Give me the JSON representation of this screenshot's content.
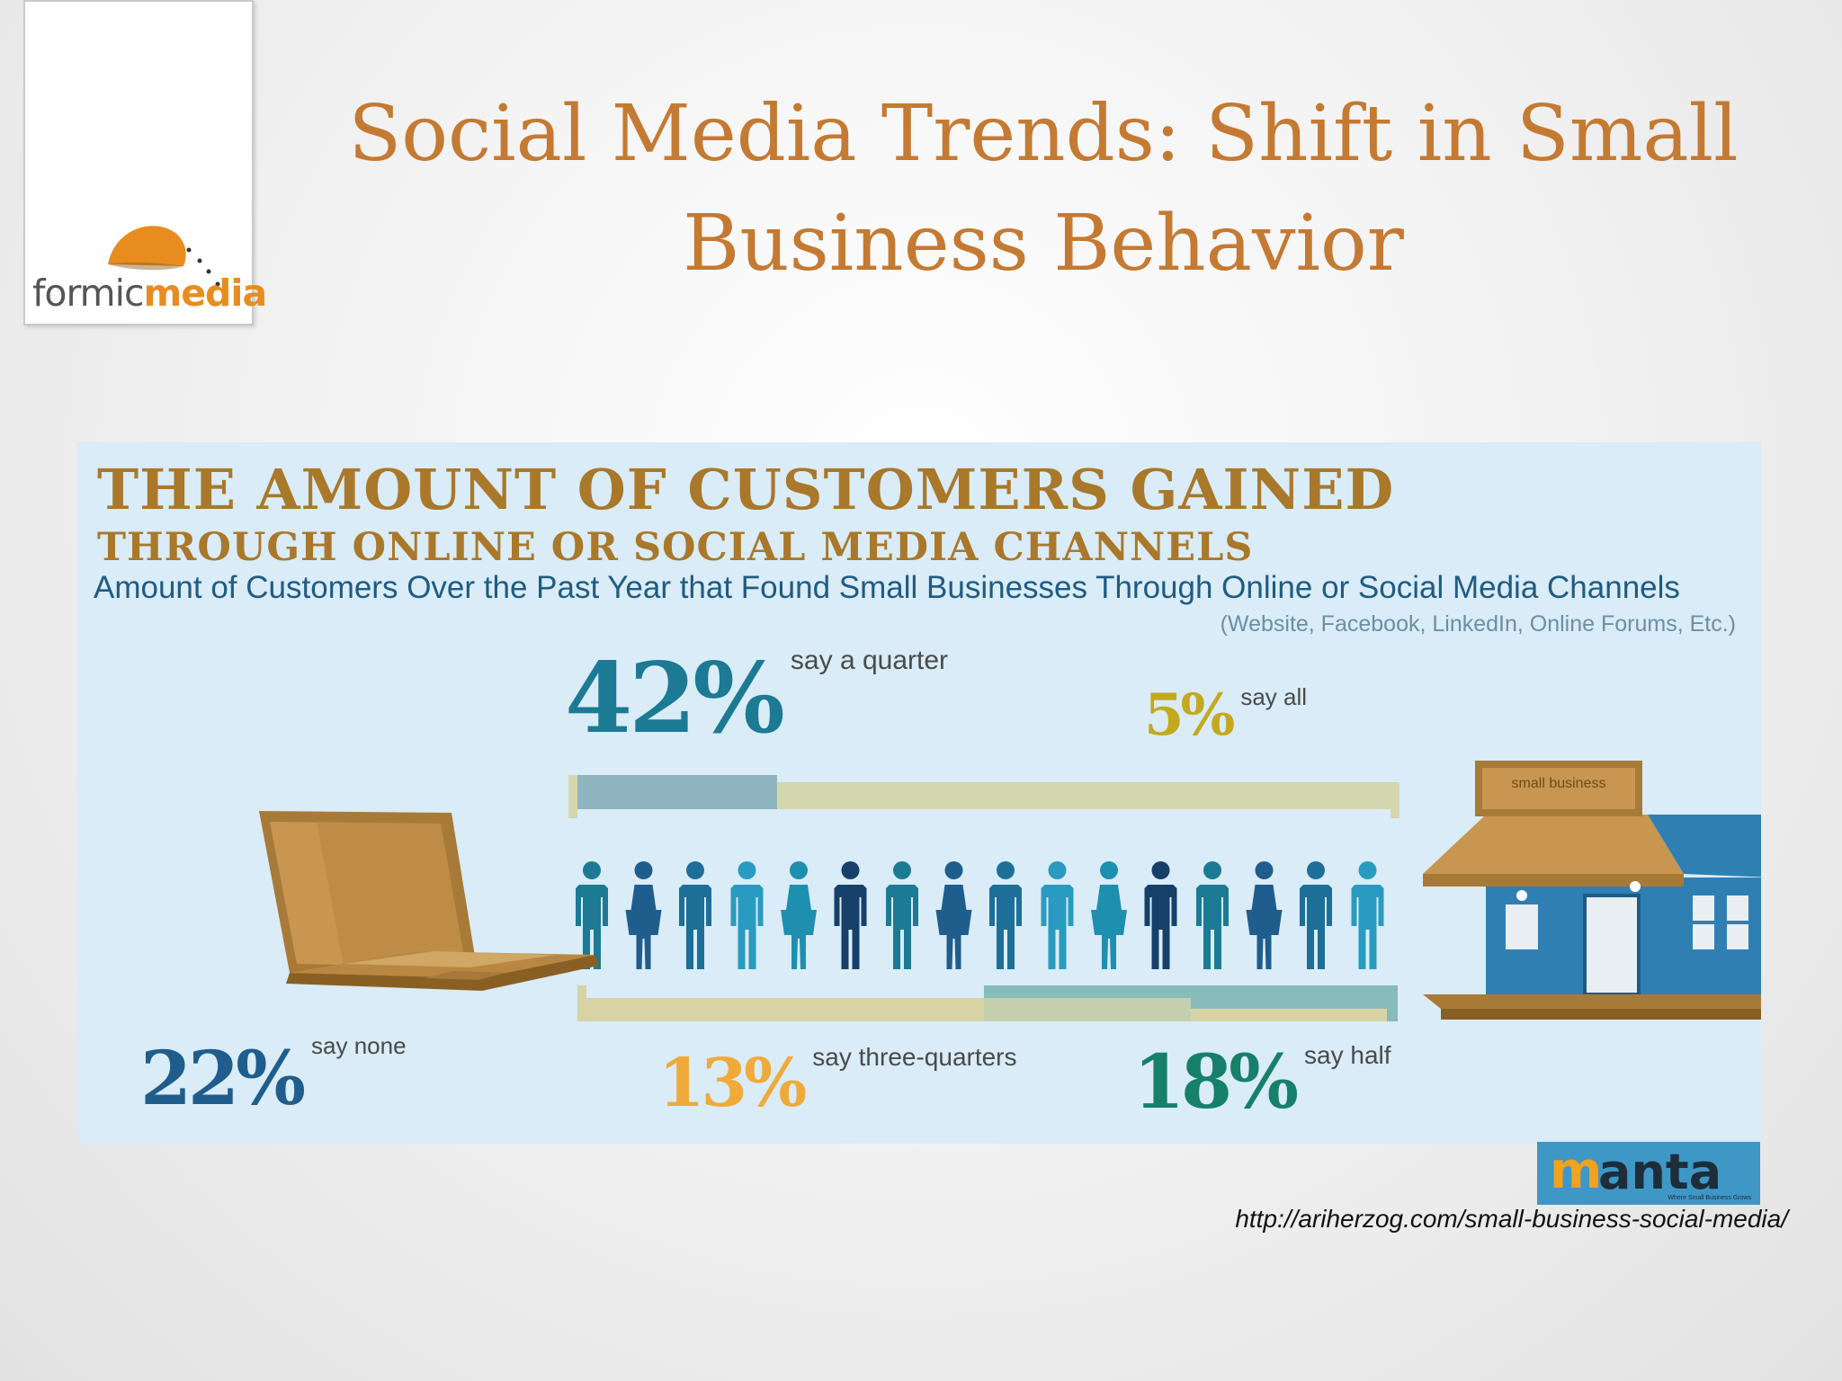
{
  "logo": {
    "text_a": "formic",
    "text_b": "media",
    "brand_color": "#e88c20"
  },
  "slide": {
    "title_line1": "Social Media Trends: Shift in Small",
    "title_line2": "Business Behavior",
    "title_color": "#c47a32"
  },
  "infographic": {
    "heading1": "THE AMOUNT OF CUSTOMERS GAINED",
    "heading2": "THROUGH ONLINE OR SOCIAL MEDIA CHANNELS",
    "subtitle": "Amount of Customers Over the Past Year that Found Small Businesses Through Online or Social Media Channels",
    "note": "(Website, Facebook, LinkedIn, Online Forums, Etc.)",
    "stats": [
      {
        "value": "42%",
        "label": "say a quarter",
        "color": "#1c7a94",
        "share": 0.42
      },
      {
        "value": "5%",
        "label": "say all",
        "color": "#c4a81f",
        "share": 0.05
      },
      {
        "value": "22%",
        "label": "say none",
        "color": "#1f5d8c",
        "share": 0.22
      },
      {
        "value": "13%",
        "label": "say three-quarters",
        "color": "#f0aa3a",
        "share": 0.13
      },
      {
        "value": "18%",
        "label": "say half",
        "color": "#16806a",
        "share": 0.18
      }
    ],
    "people_count": 16,
    "store_sign": "small business",
    "icons": [
      "laptop-icon",
      "person-icon",
      "storefront-icon"
    ]
  },
  "source": {
    "logo_initial": "m",
    "logo_rest": "anta",
    "logo_tagline": "Where Small Business Grows",
    "url": "http://ariherzog.com/small-business-social-media/"
  }
}
